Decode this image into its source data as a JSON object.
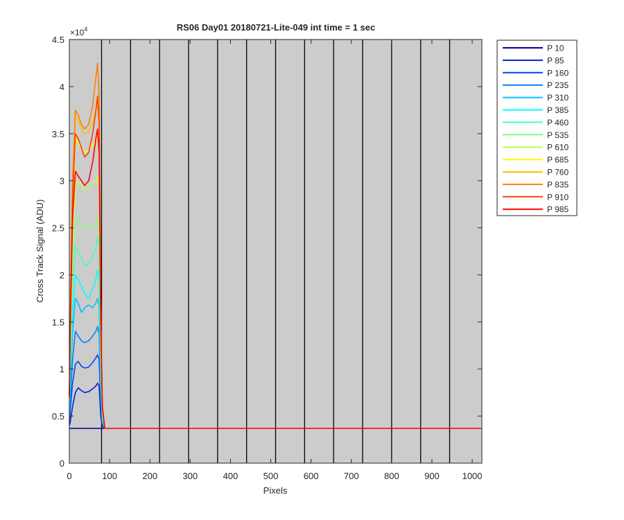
{
  "chart_data": {
    "type": "line",
    "title": "RS06 Day01 20180721-Lite-049 int time = 1 sec",
    "xlabel": "Pixels",
    "ylabel": "Cross Track Signal (ADU)",
    "y_exponent_label": "×10",
    "y_exponent": "4",
    "xlim": [
      0,
      1024
    ],
    "ylim": [
      0,
      45000
    ],
    "xticks": [
      0,
      100,
      200,
      300,
      400,
      500,
      600,
      700,
      800,
      900,
      1000
    ],
    "yticks": [
      0,
      5000,
      10000,
      15000,
      20000,
      25000,
      30000,
      35000,
      40000,
      45000
    ],
    "ytick_labels": [
      "0",
      "0.5",
      "1",
      "1.5",
      "2",
      "2.5",
      "3",
      "3.5",
      "4",
      "4.5"
    ],
    "background_color": "#cccccc",
    "grid": false,
    "segment_boundaries": [
      80,
      152,
      224,
      296,
      368,
      440,
      512,
      584,
      656,
      728,
      800,
      872,
      944
    ],
    "legend_position": "outside-right",
    "series": [
      {
        "name": "P 10",
        "color": "#00008f",
        "peak": 3700,
        "profile": [
          [
            0,
            3700
          ],
          [
            2,
            3700
          ],
          [
            1024,
            3700
          ]
        ]
      },
      {
        "name": "P 85",
        "color": "#0020d0",
        "peak": 8500,
        "profile": [
          [
            0,
            4000
          ],
          [
            2,
            4300
          ],
          [
            8,
            6000
          ],
          [
            15,
            7500
          ],
          [
            22,
            8000
          ],
          [
            30,
            7700
          ],
          [
            38,
            7500
          ],
          [
            48,
            7600
          ],
          [
            58,
            7900
          ],
          [
            66,
            8200
          ],
          [
            70,
            8500
          ],
          [
            74,
            8200
          ],
          [
            78,
            5000
          ],
          [
            82,
            3900
          ],
          [
            88,
            3700
          ],
          [
            1024,
            3700
          ]
        ]
      },
      {
        "name": "P 160",
        "color": "#0040ff",
        "peak": 11500,
        "profile": [
          [
            0,
            4200
          ],
          [
            2,
            5500
          ],
          [
            8,
            8500
          ],
          [
            15,
            10500
          ],
          [
            22,
            10800
          ],
          [
            30,
            10300
          ],
          [
            38,
            10100
          ],
          [
            48,
            10200
          ],
          [
            58,
            10700
          ],
          [
            66,
            11200
          ],
          [
            70,
            11500
          ],
          [
            74,
            11000
          ],
          [
            78,
            6000
          ],
          [
            82,
            4000
          ],
          [
            88,
            3700
          ],
          [
            1024,
            3700
          ]
        ]
      },
      {
        "name": "P 235",
        "color": "#0080ff",
        "peak": 14500,
        "profile": [
          [
            0,
            4500
          ],
          [
            2,
            6500
          ],
          [
            8,
            11000
          ],
          [
            15,
            14000
          ],
          [
            22,
            13500
          ],
          [
            30,
            13000
          ],
          [
            38,
            12800
          ],
          [
            48,
            13000
          ],
          [
            58,
            13500
          ],
          [
            66,
            14000
          ],
          [
            70,
            14500
          ],
          [
            74,
            13800
          ],
          [
            78,
            7000
          ],
          [
            82,
            4200
          ],
          [
            88,
            3700
          ],
          [
            1024,
            3700
          ]
        ]
      },
      {
        "name": "P 310",
        "color": "#00bfff",
        "peak": 17500,
        "profile": [
          [
            0,
            5000
          ],
          [
            2,
            8000
          ],
          [
            8,
            14000
          ],
          [
            15,
            17500
          ],
          [
            22,
            17000
          ],
          [
            30,
            16000
          ],
          [
            38,
            16500
          ],
          [
            48,
            16800
          ],
          [
            58,
            16500
          ],
          [
            66,
            17000
          ],
          [
            70,
            17500
          ],
          [
            74,
            16800
          ],
          [
            78,
            8500
          ],
          [
            82,
            4500
          ],
          [
            88,
            3700
          ],
          [
            1024,
            3700
          ]
        ]
      },
      {
        "name": "P 385",
        "color": "#00ffff",
        "peak": 20500,
        "profile": [
          [
            0,
            5500
          ],
          [
            2,
            9000
          ],
          [
            8,
            16000
          ],
          [
            15,
            20000
          ],
          [
            22,
            19500
          ],
          [
            30,
            18800
          ],
          [
            38,
            18000
          ],
          [
            48,
            17500
          ],
          [
            58,
            18500
          ],
          [
            66,
            19500
          ],
          [
            70,
            20500
          ],
          [
            74,
            19500
          ],
          [
            78,
            9500
          ],
          [
            82,
            4800
          ],
          [
            88,
            3700
          ],
          [
            1024,
            3700
          ]
        ]
      },
      {
        "name": "P 460",
        "color": "#40ffbf",
        "peak": 24000,
        "profile": [
          [
            0,
            6000
          ],
          [
            2,
            10500
          ],
          [
            8,
            19000
          ],
          [
            15,
            23000
          ],
          [
            22,
            22500
          ],
          [
            30,
            21800
          ],
          [
            38,
            21000
          ],
          [
            48,
            21200
          ],
          [
            58,
            22000
          ],
          [
            66,
            23000
          ],
          [
            70,
            24000
          ],
          [
            74,
            23000
          ],
          [
            78,
            11000
          ],
          [
            82,
            5000
          ],
          [
            88,
            3700
          ],
          [
            1024,
            3700
          ]
        ]
      },
      {
        "name": "P 535",
        "color": "#80ff80",
        "peak": 26000,
        "profile": [
          [
            0,
            6500
          ],
          [
            2,
            11500
          ],
          [
            8,
            21000
          ],
          [
            15,
            25000
          ],
          [
            22,
            26000
          ],
          [
            30,
            25200
          ],
          [
            38,
            24800
          ],
          [
            48,
            25000
          ],
          [
            58,
            25500
          ],
          [
            66,
            25000
          ],
          [
            70,
            26000
          ],
          [
            74,
            25000
          ],
          [
            78,
            12000
          ],
          [
            82,
            5200
          ],
          [
            88,
            3700
          ],
          [
            1024,
            3700
          ]
        ]
      },
      {
        "name": "P 610",
        "color": "#bfff40",
        "peak": 30500,
        "profile": [
          [
            0,
            6800
          ],
          [
            2,
            12500
          ],
          [
            8,
            23500
          ],
          [
            15,
            29000
          ],
          [
            22,
            30000
          ],
          [
            30,
            29500
          ],
          [
            38,
            29000
          ],
          [
            48,
            29200
          ],
          [
            58,
            29800
          ],
          [
            66,
            30000
          ],
          [
            70,
            30500
          ],
          [
            74,
            29500
          ],
          [
            78,
            13500
          ],
          [
            82,
            5500
          ],
          [
            88,
            3700
          ],
          [
            1024,
            3700
          ]
        ]
      },
      {
        "name": "P 685",
        "color": "#ffff00",
        "peak": 35000,
        "profile": [
          [
            0,
            7000
          ],
          [
            2,
            13000
          ],
          [
            8,
            27000
          ],
          [
            15,
            34500
          ],
          [
            22,
            34000
          ],
          [
            30,
            33500
          ],
          [
            38,
            33000
          ],
          [
            48,
            33200
          ],
          [
            58,
            33800
          ],
          [
            66,
            34200
          ],
          [
            70,
            35000
          ],
          [
            74,
            33800
          ],
          [
            78,
            15000
          ],
          [
            82,
            5800
          ],
          [
            88,
            3700
          ],
          [
            1024,
            3700
          ]
        ]
      },
      {
        "name": "P 760",
        "color": "#ffbf00",
        "peak": 38000,
        "profile": [
          [
            0,
            7200
          ],
          [
            2,
            14000
          ],
          [
            8,
            29000
          ],
          [
            15,
            37000
          ],
          [
            22,
            36500
          ],
          [
            30,
            35500
          ],
          [
            38,
            35000
          ],
          [
            48,
            35200
          ],
          [
            58,
            36200
          ],
          [
            66,
            37500
          ],
          [
            70,
            38000
          ],
          [
            74,
            36500
          ],
          [
            78,
            16000
          ],
          [
            82,
            6000
          ],
          [
            88,
            3700
          ],
          [
            1024,
            3700
          ]
        ]
      },
      {
        "name": "P 835",
        "color": "#ff8000",
        "peak": 42500,
        "profile": [
          [
            0,
            7500
          ],
          [
            2,
            15000
          ],
          [
            8,
            30000
          ],
          [
            15,
            37500
          ],
          [
            22,
            37000
          ],
          [
            30,
            36000
          ],
          [
            38,
            35500
          ],
          [
            48,
            36000
          ],
          [
            58,
            38000
          ],
          [
            66,
            41000
          ],
          [
            70,
            42500
          ],
          [
            74,
            39000
          ],
          [
            78,
            17000
          ],
          [
            82,
            6200
          ],
          [
            88,
            3700
          ],
          [
            1024,
            3700
          ]
        ]
      },
      {
        "name": "P 910",
        "color": "#ff4000",
        "peak": 39000,
        "profile": [
          [
            0,
            7200
          ],
          [
            2,
            14000
          ],
          [
            8,
            28000
          ],
          [
            15,
            35000
          ],
          [
            22,
            34500
          ],
          [
            30,
            33500
          ],
          [
            38,
            32500
          ],
          [
            48,
            33000
          ],
          [
            58,
            35000
          ],
          [
            66,
            37500
          ],
          [
            70,
            39000
          ],
          [
            74,
            36000
          ],
          [
            78,
            15500
          ],
          [
            82,
            6000
          ],
          [
            88,
            3700
          ],
          [
            1024,
            3700
          ]
        ]
      },
      {
        "name": "P 985",
        "color": "#ff0000",
        "peak": 35500,
        "profile": [
          [
            0,
            7000
          ],
          [
            2,
            13500
          ],
          [
            8,
            26000
          ],
          [
            15,
            31000
          ],
          [
            22,
            30500
          ],
          [
            30,
            30000
          ],
          [
            38,
            29500
          ],
          [
            48,
            30000
          ],
          [
            58,
            32000
          ],
          [
            66,
            34500
          ],
          [
            70,
            35500
          ],
          [
            74,
            33000
          ],
          [
            78,
            14500
          ],
          [
            82,
            5800
          ],
          [
            88,
            3700
          ],
          [
            1024,
            3700
          ]
        ]
      }
    ]
  }
}
